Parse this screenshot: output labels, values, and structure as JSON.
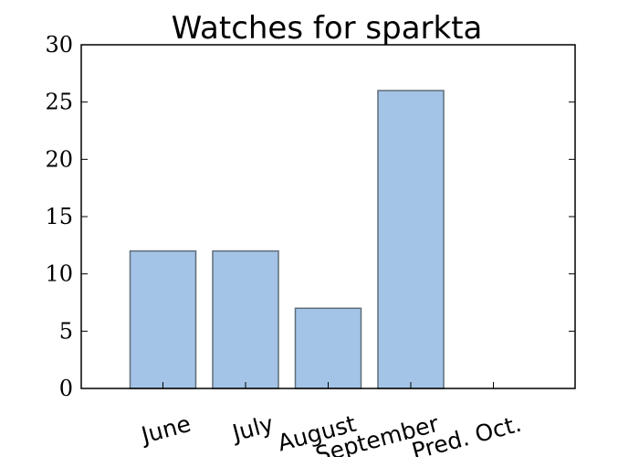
{
  "chart_data": {
    "type": "bar",
    "title": "Watches for sparkta",
    "categories": [
      "June",
      "July",
      "August",
      "September",
      "Pred. Oct."
    ],
    "values": [
      12,
      12,
      7,
      26,
      0
    ],
    "ylim": [
      0,
      30
    ],
    "yticks": [
      0,
      5,
      10,
      15,
      20,
      25,
      30
    ],
    "xlabel": "",
    "ylabel": "",
    "grid": false,
    "bar_color": "#a3c4e6",
    "bar_edge_color": "#5f6d78"
  }
}
